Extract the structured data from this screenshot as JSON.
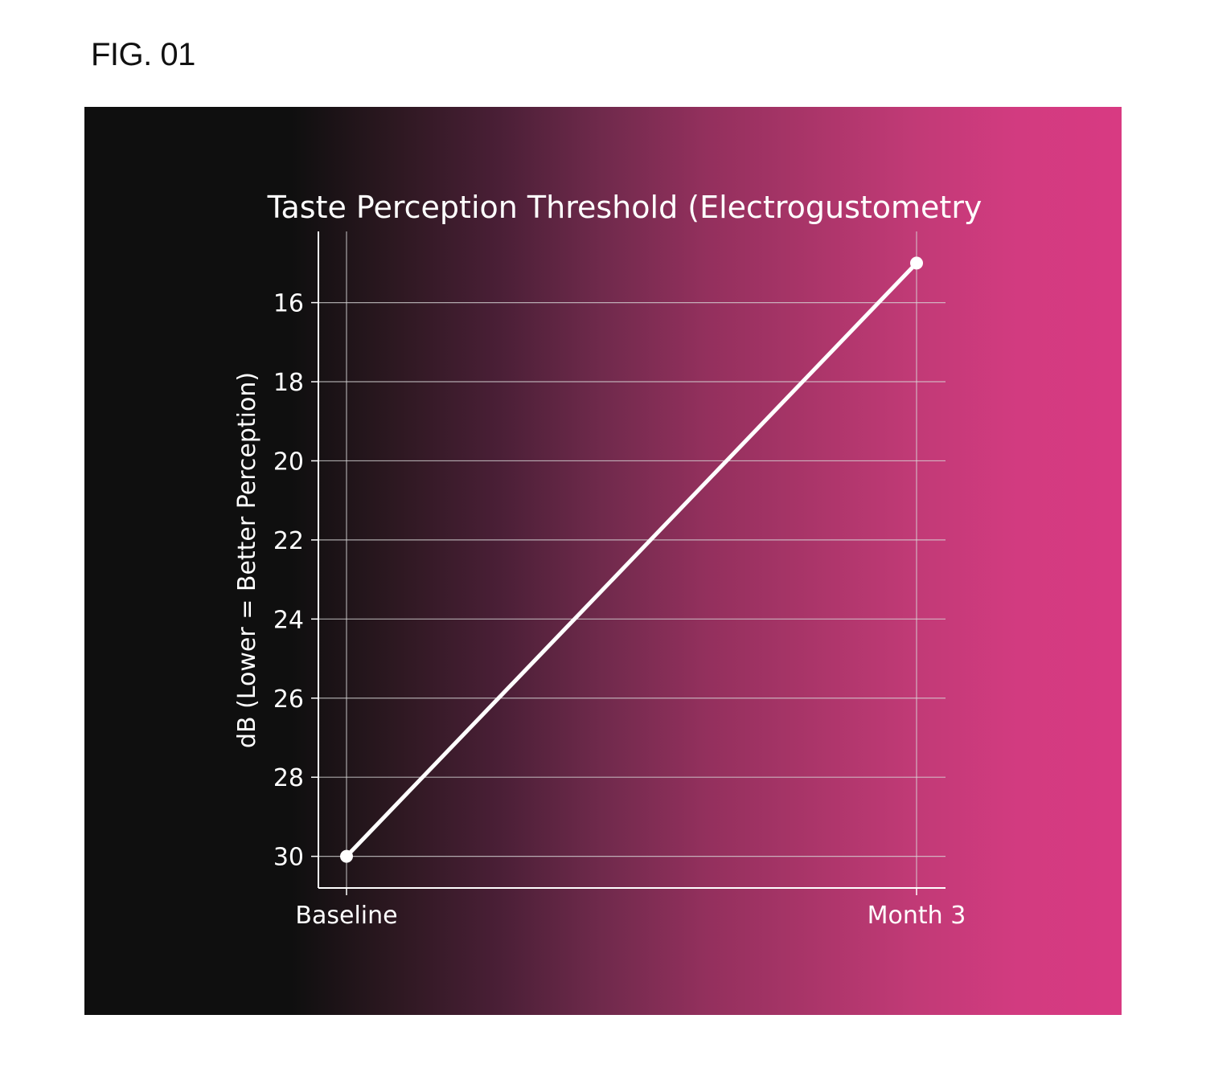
{
  "figure": {
    "label": "FIG. 01"
  },
  "colors": {
    "panel_left": "#0f0f0f",
    "panel_right": "#d83a82",
    "line": "#ffffff",
    "grid": "#d9d9d9"
  },
  "chart_data": {
    "type": "line",
    "title": "Taste Perception Threshold (Electrogustometry",
    "xlabel": "",
    "ylabel": "dB (Lower = Better Perception)",
    "categories": [
      "Baseline",
      "Month 3"
    ],
    "series": [
      {
        "values": [
          30,
          15
        ]
      }
    ],
    "ylim": [
      30.8,
      14.2
    ],
    "y_inverted": true,
    "yticks": [
      16,
      18,
      20,
      22,
      24,
      26,
      28,
      30
    ],
    "grid": true,
    "legend": "none"
  }
}
